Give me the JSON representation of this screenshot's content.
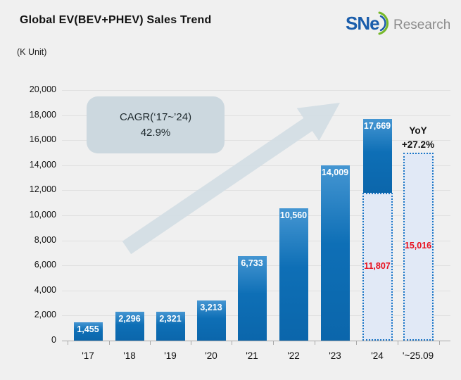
{
  "title": "Global EV(BEV+PHEV) Sales Trend",
  "unit_label": "(K Unit)",
  "logo": {
    "sne": "SNe",
    "research": "Research"
  },
  "annotations": {
    "cagr_line1": "CAGR(‘17~’24)",
    "cagr_line2": "42.9%",
    "yoy_line1": "YoY",
    "yoy_line2": "+27.2%"
  },
  "chart_data": {
    "type": "bar",
    "title": "Global EV(BEV+PHEV) Sales Trend",
    "ylabel": "(K Unit)",
    "ylim": [
      0,
      20000
    ],
    "ytick_step": 2000,
    "ytick_labels": [
      "20,000",
      "18,000",
      "16,000",
      "14,000",
      "12,000",
      "10,000",
      "8,000",
      "6,000",
      "4,000",
      "2,000",
      "0"
    ],
    "grid": true,
    "categories": [
      "'17",
      "'18",
      "'19",
      "'20",
      "'21",
      "'22",
      "'23",
      "'24",
      "'~25.09"
    ],
    "values": [
      1455,
      2296,
      2321,
      3213,
      6733,
      10560,
      14009,
      17669,
      15016
    ],
    "bars": [
      {
        "category": "'17",
        "value": 1455,
        "label": "1,455",
        "type": "actual"
      },
      {
        "category": "'18",
        "value": 2296,
        "label": "2,296",
        "type": "actual"
      },
      {
        "category": "'19",
        "value": 2321,
        "label": "2,321",
        "type": "actual"
      },
      {
        "category": "'20",
        "value": 3213,
        "label": "3,213",
        "type": "actual"
      },
      {
        "category": "'21",
        "value": 6733,
        "label": "6,733",
        "type": "actual"
      },
      {
        "category": "'22",
        "value": 10560,
        "label": "10,560",
        "type": "actual"
      },
      {
        "category": "'23",
        "value": 14009,
        "label": "14,009",
        "type": "actual"
      },
      {
        "category": "'24",
        "value": 17669,
        "label": "17,669",
        "type": "actual_with_estimate",
        "estimate_value": 11807,
        "estimate_label": "11,807"
      },
      {
        "category": "'~25.09",
        "value": 15016,
        "label": "15,016",
        "type": "estimate"
      }
    ],
    "annotations": {
      "cagr": "CAGR(‘17~’24) 42.9%",
      "yoy": "YoY +27.2%"
    }
  },
  "colors": {
    "background": "#f0f0f0",
    "bar_blue": "#0e6fb6",
    "bar_blue_light": "#4596d2",
    "estimate_fill": "#e1e9f6",
    "estimate_border": "#1b76c6",
    "estimate_text": "#e8101e",
    "bar_label_text": "#ffffff",
    "cagr_box_bg": "#ccd8df",
    "arrow": "#d3dde4",
    "logo_blue": "#1a5dab",
    "logo_green": "#76b82a",
    "logo_gray": "#8c8c8c"
  }
}
